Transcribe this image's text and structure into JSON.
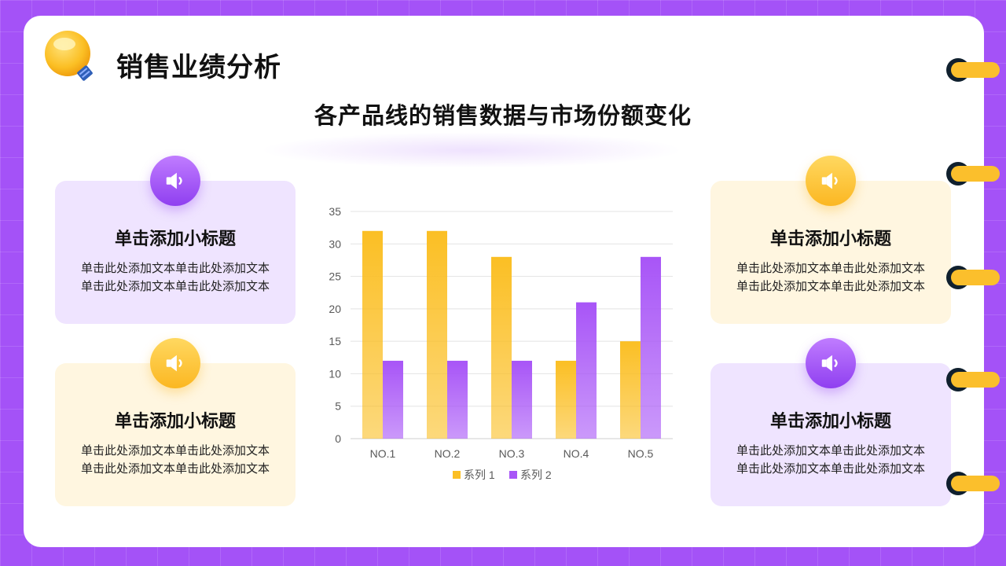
{
  "header": {
    "title": "销售业绩分析",
    "subtitle": "各产品线的销售数据与市场份额变化"
  },
  "icons": {
    "title_icon": "lightbulb-icon",
    "card_icon": "speaker-icon"
  },
  "colors": {
    "background": "#a452f7",
    "purple": "#a855f7",
    "yellow": "#fbbf24",
    "purple_card": "#efe4ff",
    "yellow_card": "#fff6e0"
  },
  "cards": [
    {
      "title": "单击添加小标题",
      "line1": "单击此处添加文本单击此处添加文本",
      "line2": "单击此处添加文本单击此处添加文本"
    },
    {
      "title": "单击添加小标题",
      "line1": "单击此处添加文本单击此处添加文本",
      "line2": "单击此处添加文本单击此处添加文本"
    },
    {
      "title": "单击添加小标题",
      "line1": "单击此处添加文本单击此处添加文本",
      "line2": "单击此处添加文本单击此处添加文本"
    },
    {
      "title": "单击添加小标题",
      "line1": "单击此处添加文本单击此处添加文本",
      "line2": "单击此处添加文本单击此处添加文本"
    }
  ],
  "chart_data": {
    "type": "bar",
    "title": "",
    "xlabel": "",
    "ylabel": "",
    "categories": [
      "NO.1",
      "NO.2",
      "NO.3",
      "NO.4",
      "NO.5"
    ],
    "series": [
      {
        "name": "系列 1",
        "values": [
          32,
          32,
          28,
          12,
          15
        ],
        "color": "#fbbf24"
      },
      {
        "name": "系列 2",
        "values": [
          12,
          12,
          12,
          21,
          28
        ],
        "color": "#a855f7"
      }
    ],
    "ylim": [
      0,
      35
    ],
    "yticks": [
      0,
      5,
      10,
      15,
      20,
      25,
      30,
      35
    ],
    "grid": true,
    "legend": "bottom"
  }
}
